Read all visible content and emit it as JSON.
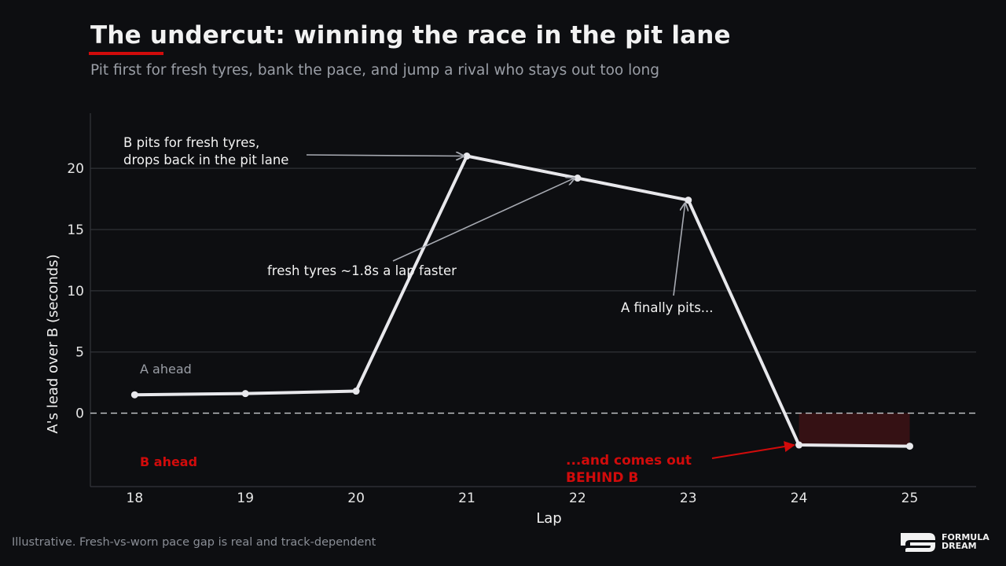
{
  "header": {
    "title": "The undercut: winning the race in the pit lane",
    "subtitle": "Pit first for fresh tyres, bank the pace, and jump a rival who stays out too long"
  },
  "footer": {
    "note": "Illustrative. Fresh-vs-worn pace gap is real and track-dependent"
  },
  "logo": {
    "line1": "FORMULA",
    "line2": "DREAM"
  },
  "colors": {
    "background": "#0d0e11",
    "line": "#e8e8ec",
    "accent_red": "#d10b0b",
    "shade": "#351114",
    "grid": "#2a2c31",
    "muted_text": "#9a9ea6"
  },
  "chart_data": {
    "type": "line",
    "xlabel": "Lap",
    "ylabel": "A's lead over B (seconds)",
    "x": [
      18,
      19,
      20,
      21,
      22,
      23,
      24,
      25
    ],
    "y": [
      1.5,
      1.6,
      1.8,
      21.0,
      19.2,
      17.4,
      -2.6,
      -2.7
    ],
    "xlim": [
      17.6,
      25.6
    ],
    "ylim": [
      -6,
      24.5
    ],
    "xticks": [
      18,
      19,
      20,
      21,
      22,
      23,
      24,
      25
    ],
    "yticks": [
      0,
      5,
      10,
      15,
      20
    ],
    "grid": true,
    "zero_line": "dashed",
    "shaded_region": {
      "x": [
        24,
        25
      ],
      "y": [
        -2.7,
        0
      ]
    },
    "zone_labels": {
      "above": "A ahead",
      "below": "B ahead"
    },
    "annotations": [
      {
        "id": "b-pits",
        "lines": [
          "B pits for fresh tyres,",
          "drops back in the pit lane"
        ],
        "target_x": 21,
        "target_y": 21.0
      },
      {
        "id": "fresh-tyres",
        "lines": [
          "fresh tyres ~1.8s a lap faster"
        ],
        "target_x": 22,
        "target_y": 19.2
      },
      {
        "id": "a-pits",
        "lines": [
          "A finally pits..."
        ],
        "target_x": 23,
        "target_y": 17.4
      },
      {
        "id": "comes-out",
        "lines": [
          "...and comes out",
          "BEHIND B"
        ],
        "target_x": 24,
        "target_y": -2.6
      }
    ]
  }
}
